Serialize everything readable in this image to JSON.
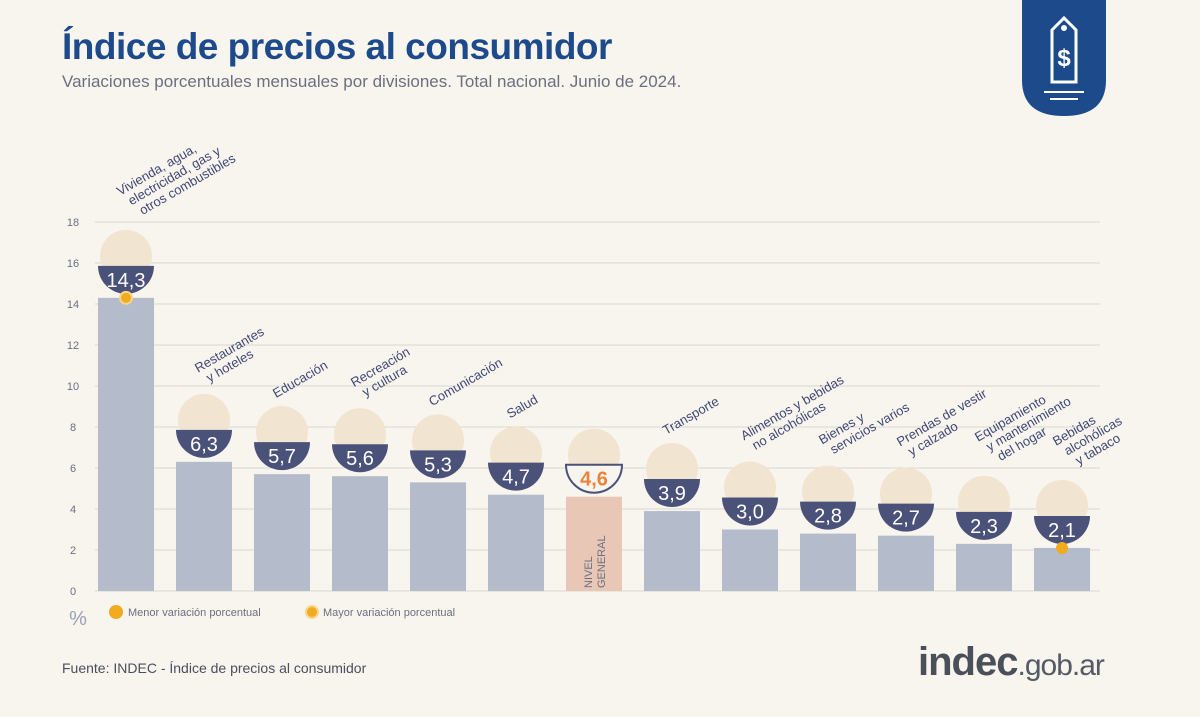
{
  "header": {
    "title": "Índice de precios al consumidor",
    "subtitle": "Variaciones porcentuales mensuales por divisiones. Total nacional. Junio de 2024."
  },
  "footer": {
    "source": "Fuente: INDEC - Índice de precios al consumidor",
    "brand_main": "indec",
    "brand_suffix": ".gob.ar"
  },
  "logo": {
    "icon": "price-tag-dollar-icon",
    "color": "#1d4a8a"
  },
  "colors": {
    "bar": "#b4bccb",
    "general_bar": "#e9c7b6",
    "badge": "#4b527a",
    "highlight": "#f0ab1f",
    "general_value": "#e8833a",
    "grid": "#d9d6cf"
  },
  "chart_data": {
    "type": "bar",
    "categories": [
      "Vivienda, agua, electricidad, gas y otros combustibles",
      "Restaurantes y hoteles",
      "Educación",
      "Recreación y cultura",
      "Comunicación",
      "Salud",
      "Nivel general",
      "Transporte",
      "Alimentos y bebidas no alcohólicas",
      "Bienes y servicios varios",
      "Prendas de vestir y calzado",
      "Equipamiento y mantenimiento del hogar",
      "Bebidas alcohólicas y tabaco"
    ],
    "label_lines": [
      [
        "Vivienda, agua,",
        "electricidad, gas y",
        "otros combustibles"
      ],
      [
        "Restaurantes",
        "y hoteles"
      ],
      [
        "Educación"
      ],
      [
        "Recreación",
        "y cultura"
      ],
      [
        "Comunicación"
      ],
      [
        "Salud"
      ],
      [],
      [
        "Transporte"
      ],
      [
        "Alimentos y bebidas",
        "no alcohólicas"
      ],
      [
        "Bienes y",
        "servicios varios"
      ],
      [
        "Prendas de vestir",
        "y calzado"
      ],
      [
        "Equipamiento",
        "y mantenimiento",
        "del hogar"
      ],
      [
        "Bebidas",
        "alcohólicas",
        "y tabaco"
      ]
    ],
    "values": [
      14.3,
      6.3,
      5.7,
      5.6,
      5.3,
      4.7,
      4.6,
      3.9,
      3.0,
      2.8,
      2.7,
      2.3,
      2.1
    ],
    "value_labels": [
      "14,3",
      "6,3",
      "5,7",
      "5,6",
      "5,3",
      "4,7",
      "4,6",
      "3,9",
      "3,0",
      "2,8",
      "2,7",
      "2,3",
      "2,1"
    ],
    "icons": [
      "house-utilities-icon",
      "restaurant-icon",
      "education-icon",
      "recreation-icon",
      "phone-icon",
      "health-icon",
      "shopping-basket-icon",
      "transport-icon",
      "food-icon",
      "personal-care-icon",
      "clothing-icon",
      "home-appliance-icon",
      "beverages-tobacco-icon"
    ],
    "general_bar_label": [
      "NIVEL",
      "GENERAL"
    ],
    "highlight_max": 0,
    "highlight_min": 12,
    "ylim": [
      0,
      18
    ],
    "yticks": [
      0,
      2,
      4,
      6,
      8,
      10,
      12,
      14,
      16,
      18
    ],
    "ylabel": "%",
    "grid": true,
    "legend": {
      "placement": "bottom-left",
      "items": [
        "Menor variación porcentual",
        "Mayor variación porcentual"
      ]
    }
  }
}
